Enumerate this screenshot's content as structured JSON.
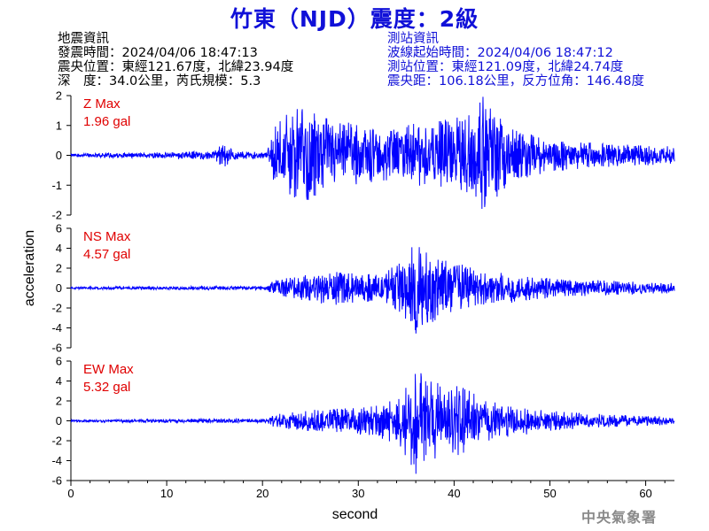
{
  "title": "竹東（NJD）震度：2級",
  "info_left": {
    "heading": "地震資訊",
    "origin_time": "發震時間：2024/04/06 18:47:13",
    "epicenter": "震央位置：東經121.67度，北緯23.94度",
    "depth_magnitude": "深　度：34.0公里，芮氏規模：5.3"
  },
  "info_right": {
    "heading": "測站資訊",
    "wave_start": "波線起始時間：2024/04/06 18:47:12",
    "station_position": "測站位置：東經121.09度，北緯24.74度",
    "distance_azimuth": "震央距：106.18公里，反方位角：146.48度"
  },
  "agency": "中央氣象署",
  "colors": {
    "title": "#1010d8",
    "trace": "#0000ff",
    "max_label": "#e00000"
  },
  "chart_data": {
    "type": "line",
    "xlabel": "second",
    "ylabel": "acceleration",
    "xlim": [
      0,
      63
    ],
    "x_ticks": [
      0,
      10,
      20,
      30,
      40,
      50,
      60
    ],
    "panels": [
      {
        "name": "Z",
        "max_label": "Z Max",
        "max_value": "1.96 gal",
        "ylim": [
          -2,
          2
        ],
        "y_ticks": [
          -2,
          -1,
          0,
          1,
          2
        ],
        "series": [
          {
            "t": 0,
            "a": 0.06
          },
          {
            "t": 10,
            "a": 0.1
          },
          {
            "t": 15,
            "a": 0.15
          },
          {
            "t": 16,
            "a": 0.45
          },
          {
            "t": 17,
            "a": 0.15
          },
          {
            "t": 20.5,
            "a": 0.1
          },
          {
            "t": 21,
            "a": 0.9
          },
          {
            "t": 22.5,
            "a": 1.4
          },
          {
            "t": 24,
            "a": 1.6
          },
          {
            "t": 26,
            "a": 1.5
          },
          {
            "t": 28,
            "a": 1.2
          },
          {
            "t": 30,
            "a": 1.0
          },
          {
            "t": 32,
            "a": 0.9
          },
          {
            "t": 35,
            "a": 1.0
          },
          {
            "t": 38,
            "a": 1.2
          },
          {
            "t": 41,
            "a": 1.3
          },
          {
            "t": 43,
            "a": 1.96
          },
          {
            "t": 46,
            "a": 0.9
          },
          {
            "t": 50,
            "a": 0.55
          },
          {
            "t": 55,
            "a": 0.4
          },
          {
            "t": 63,
            "a": 0.3
          }
        ]
      },
      {
        "name": "NS",
        "max_label": "NS Max",
        "max_value": "4.57 gal",
        "ylim": [
          -6,
          6
        ],
        "y_ticks": [
          -6,
          -4,
          -2,
          0,
          2,
          4,
          6
        ],
        "series": [
          {
            "t": 0,
            "a": 0.12
          },
          {
            "t": 15,
            "a": 0.2
          },
          {
            "t": 20.5,
            "a": 0.2
          },
          {
            "t": 21,
            "a": 0.8
          },
          {
            "t": 24,
            "a": 1.2
          },
          {
            "t": 27,
            "a": 1.8
          },
          {
            "t": 30,
            "a": 1.4
          },
          {
            "t": 32,
            "a": 1.4
          },
          {
            "t": 34,
            "a": 2.5
          },
          {
            "t": 36,
            "a": 4.57
          },
          {
            "t": 38,
            "a": 3.4
          },
          {
            "t": 40,
            "a": 2.6
          },
          {
            "t": 42,
            "a": 2.0
          },
          {
            "t": 45,
            "a": 1.6
          },
          {
            "t": 50,
            "a": 1.0
          },
          {
            "t": 55,
            "a": 0.8
          },
          {
            "t": 63,
            "a": 0.5
          }
        ]
      },
      {
        "name": "EW",
        "max_label": "EW Max",
        "max_value": "5.32 gal",
        "ylim": [
          -6,
          6
        ],
        "y_ticks": [
          -6,
          -4,
          -2,
          0,
          2,
          4,
          6
        ],
        "series": [
          {
            "t": 0,
            "a": 0.12
          },
          {
            "t": 15,
            "a": 0.2
          },
          {
            "t": 20.5,
            "a": 0.2
          },
          {
            "t": 21,
            "a": 0.6
          },
          {
            "t": 24,
            "a": 1.0
          },
          {
            "t": 27,
            "a": 1.2
          },
          {
            "t": 30,
            "a": 1.4
          },
          {
            "t": 32,
            "a": 1.6
          },
          {
            "t": 34,
            "a": 2.4
          },
          {
            "t": 36,
            "a": 5.32
          },
          {
            "t": 38,
            "a": 4.0
          },
          {
            "t": 41,
            "a": 3.4
          },
          {
            "t": 43,
            "a": 2.2
          },
          {
            "t": 46,
            "a": 1.6
          },
          {
            "t": 50,
            "a": 1.0
          },
          {
            "t": 55,
            "a": 0.7
          },
          {
            "t": 63,
            "a": 0.4
          }
        ]
      }
    ],
    "grid": false
  }
}
